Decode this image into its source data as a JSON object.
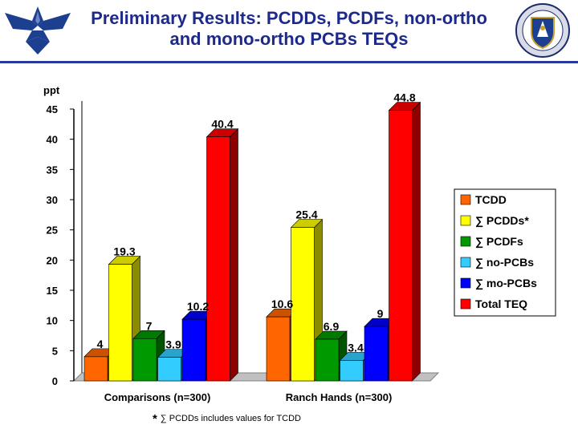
{
  "slide": {
    "title": "Preliminary Results: PCDDs, PCDFs, non-ortho and mono-ortho PCBs TEQs",
    "footnote_star": "*",
    "footnote": "∑ PCDDs includes values for TCDD"
  },
  "logos": {
    "left": "air-force-wings-logo",
    "right": "unit-shield-emblem"
  },
  "chart_data": {
    "type": "bar",
    "title": "",
    "ylabel": "ppt",
    "xlabel": "",
    "ylim": [
      0,
      45
    ],
    "yticks": [
      "0",
      "5",
      "10",
      "15",
      "20",
      "25",
      "30",
      "35",
      "40",
      "45"
    ],
    "categories": [
      "Comparisons (n=300)",
      "Ranch Hands (n=300)"
    ],
    "series": [
      {
        "name": "TCDD",
        "color": "#ff6600",
        "values": [
          4,
          10.6
        ],
        "labels": [
          "4",
          "10.6"
        ]
      },
      {
        "name": "∑ PCDDs*",
        "color": "#ffff00",
        "values": [
          19.3,
          25.4
        ],
        "labels": [
          "19.3",
          "25.4"
        ]
      },
      {
        "name": "∑ PCDFs",
        "color": "#009900",
        "values": [
          7,
          6.9
        ],
        "labels": [
          "7",
          "6.9"
        ]
      },
      {
        "name": "∑ no-PCBs",
        "color": "#33ccff",
        "values": [
          3.9,
          3.4
        ],
        "labels": [
          "3.9",
          "3.4"
        ]
      },
      {
        "name": "∑ mo-PCBs",
        "color": "#0000ff",
        "values": [
          10.2,
          9
        ],
        "labels": [
          "10.2",
          "9"
        ]
      },
      {
        "name": "Total TEQ",
        "color": "#ff0000",
        "values": [
          40.4,
          44.8
        ],
        "labels": [
          "40.4",
          "44.8"
        ]
      }
    ],
    "grid": false,
    "three_d": true,
    "legend_position": "right"
  }
}
